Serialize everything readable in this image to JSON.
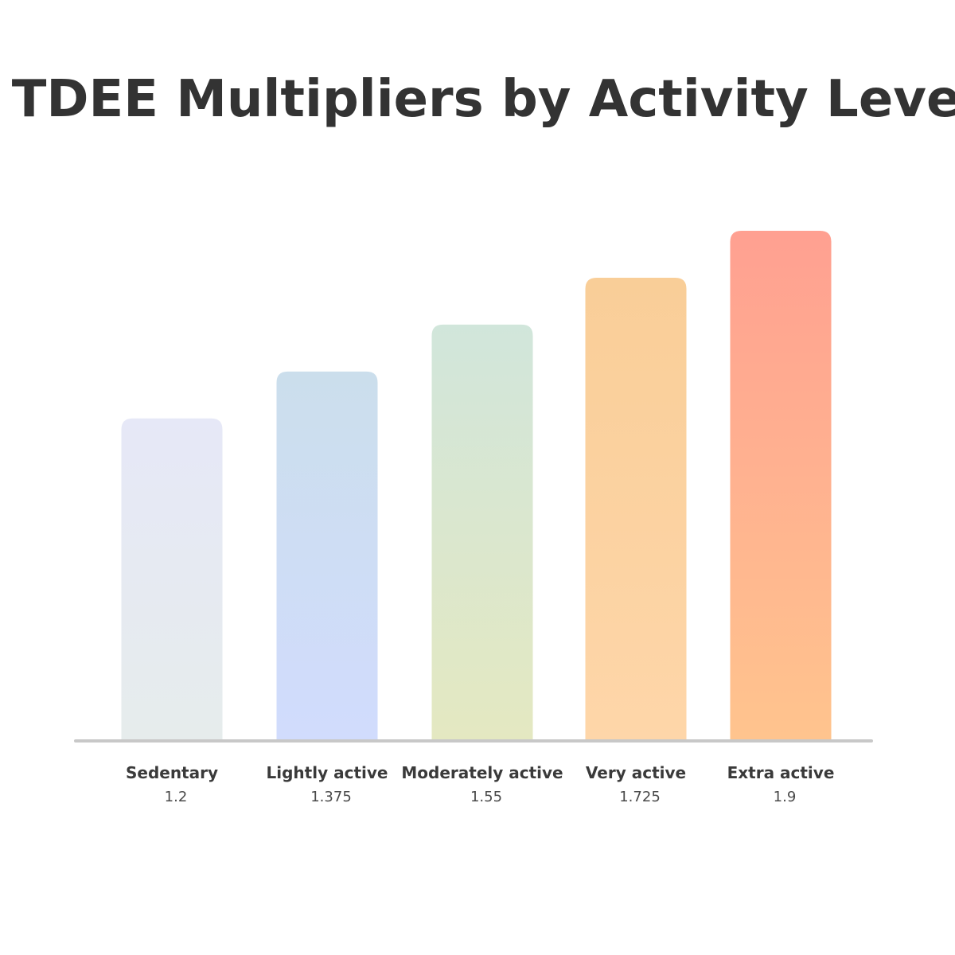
{
  "chart_data": {
    "type": "bar",
    "title": "TDEE Multipliers by Activity Level",
    "xlabel": "",
    "ylabel": "",
    "categories": [
      "Sedentary",
      "Lightly active",
      "Moderately active",
      "Very active",
      "Extra active"
    ],
    "values": [
      1.2,
      1.375,
      1.55,
      1.725,
      1.9
    ],
    "value_labels": [
      "1.2",
      "1.375",
      "1.55",
      "1.725",
      "1.9"
    ],
    "ylim": [
      0,
      1.9
    ],
    "grid": false,
    "legend": "none",
    "bar_colors": [
      {
        "top": "#e6e8f7",
        "bottom": "#e6ecec"
      },
      {
        "top": "#cbdeec",
        "bottom": "#d1dcfd"
      },
      {
        "top": "#d1e6db",
        "bottom": "#e4e8c1"
      },
      {
        "top": "#f9ce98",
        "bottom": "#fed6a9"
      },
      {
        "top": "#ffa091",
        "bottom": "#ffc48e"
      }
    ],
    "baseline_color": "#c8c8c8"
  }
}
